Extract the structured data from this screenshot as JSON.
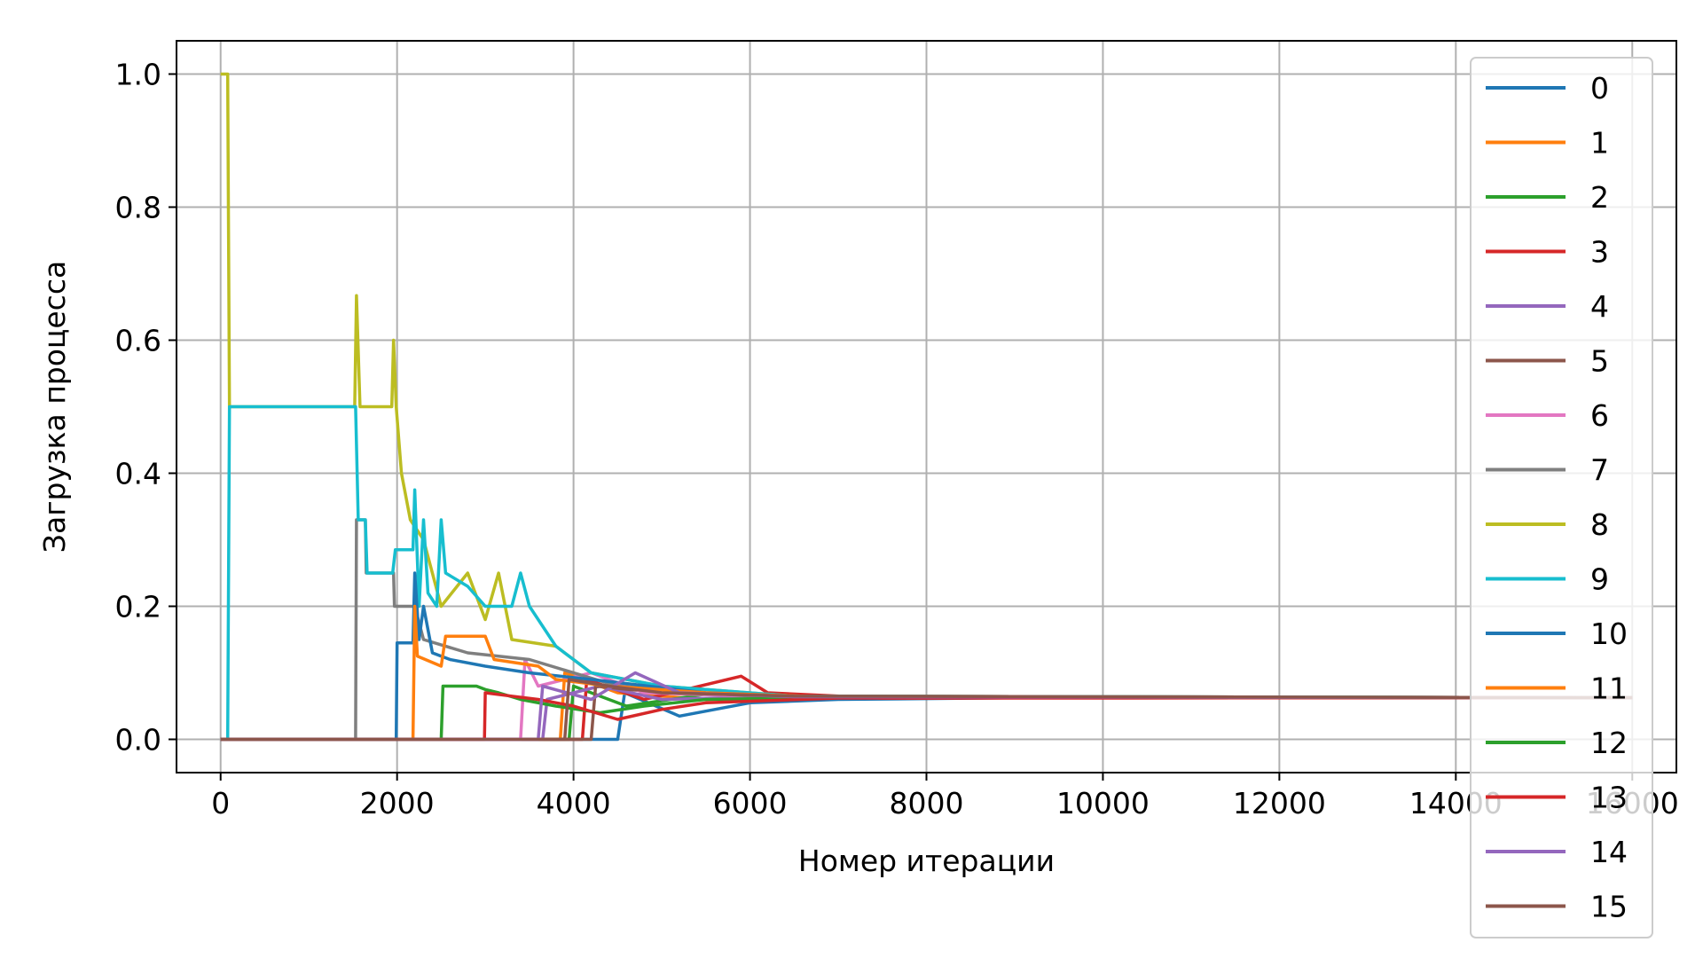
{
  "chart_data": {
    "type": "line",
    "title": "",
    "xlabel": "Номер итерации",
    "ylabel": "Загрузка процесса",
    "xlim": [
      -500,
      16500
    ],
    "ylim": [
      -0.05,
      1.05
    ],
    "x_ticks": [
      0,
      2000,
      4000,
      6000,
      8000,
      10000,
      12000,
      14000,
      16000
    ],
    "x_tick_labels": [
      "0",
      "2000",
      "4000",
      "6000",
      "8000",
      "10000",
      "12000",
      "14000",
      "16000"
    ],
    "y_ticks": [
      0.0,
      0.2,
      0.4,
      0.6,
      0.8,
      1.0
    ],
    "y_tick_labels": [
      "0.0",
      "0.2",
      "0.4",
      "0.6",
      "0.8",
      "1.0"
    ],
    "grid": true,
    "legend_position": "right",
    "series": [
      {
        "name": "0",
        "color": "#1f77b4",
        "points": [
          [
            0,
            0
          ],
          [
            4500,
            0
          ],
          [
            4580,
            0.07
          ],
          [
            5200,
            0.035
          ],
          [
            6000,
            0.055
          ],
          [
            7000,
            0.06
          ],
          [
            9000,
            0.0625
          ],
          [
            16000,
            0.0625
          ]
        ]
      },
      {
        "name": "1",
        "color": "#ff7f0e",
        "points": [
          [
            0,
            0
          ],
          [
            3850,
            0
          ],
          [
            3900,
            0.1
          ],
          [
            4500,
            0.07
          ],
          [
            5500,
            0.06
          ],
          [
            7000,
            0.063
          ],
          [
            16000,
            0.0625
          ]
        ]
      },
      {
        "name": "2",
        "color": "#2ca02c",
        "points": [
          [
            0,
            0
          ],
          [
            3950,
            0
          ],
          [
            4000,
            0.08
          ],
          [
            4600,
            0.05
          ],
          [
            5600,
            0.07
          ],
          [
            7000,
            0.063
          ],
          [
            16000,
            0.0625
          ]
        ]
      },
      {
        "name": "3",
        "color": "#d62728",
        "points": [
          [
            0,
            0
          ],
          [
            4100,
            0
          ],
          [
            4150,
            0.09
          ],
          [
            4800,
            0.06
          ],
          [
            5900,
            0.095
          ],
          [
            6200,
            0.07
          ],
          [
            7500,
            0.062
          ],
          [
            16000,
            0.0625
          ]
        ]
      },
      {
        "name": "4",
        "color": "#9467bd",
        "points": [
          [
            0,
            0
          ],
          [
            3650,
            0
          ],
          [
            3700,
            0.06
          ],
          [
            4300,
            0.08
          ],
          [
            5000,
            0.06
          ],
          [
            6500,
            0.065
          ],
          [
            16000,
            0.0625
          ]
        ]
      },
      {
        "name": "5",
        "color": "#8c564b",
        "points": [
          [
            0,
            0
          ],
          [
            4200,
            0
          ],
          [
            4250,
            0.08
          ],
          [
            5000,
            0.07
          ],
          [
            6500,
            0.065
          ],
          [
            16000,
            0.0625
          ]
        ]
      },
      {
        "name": "6",
        "color": "#e377c2",
        "points": [
          [
            0,
            0
          ],
          [
            3400,
            0
          ],
          [
            3450,
            0.12
          ],
          [
            3600,
            0.08
          ],
          [
            4200,
            0.1
          ],
          [
            4800,
            0.07
          ],
          [
            6000,
            0.065
          ],
          [
            16000,
            0.0625
          ]
        ]
      },
      {
        "name": "7",
        "color": "#7f7f7f",
        "points": [
          [
            0,
            0
          ],
          [
            1530,
            0
          ],
          [
            1540,
            0.33
          ],
          [
            1640,
            0.33
          ],
          [
            1650,
            0.25
          ],
          [
            1960,
            0.25
          ],
          [
            1970,
            0.2
          ],
          [
            2200,
            0.2
          ],
          [
            2300,
            0.15
          ],
          [
            2800,
            0.13
          ],
          [
            3500,
            0.12
          ],
          [
            4500,
            0.08
          ],
          [
            6000,
            0.065
          ],
          [
            16000,
            0.0625
          ]
        ]
      },
      {
        "name": "8",
        "color": "#bcbd22",
        "points": [
          [
            0,
            1.0
          ],
          [
            80,
            1.0
          ],
          [
            100,
            0.5
          ],
          [
            1520,
            0.5
          ],
          [
            1540,
            0.667
          ],
          [
            1580,
            0.5
          ],
          [
            1940,
            0.5
          ],
          [
            1960,
            0.6
          ],
          [
            1990,
            0.5
          ],
          [
            2050,
            0.4
          ],
          [
            2150,
            0.33
          ],
          [
            2300,
            0.3
          ],
          [
            2500,
            0.2
          ],
          [
            2800,
            0.25
          ],
          [
            3000,
            0.18
          ],
          [
            3150,
            0.25
          ],
          [
            3300,
            0.15
          ],
          [
            3800,
            0.14
          ],
          [
            4200,
            0.1
          ],
          [
            5000,
            0.08
          ],
          [
            6500,
            0.065
          ],
          [
            16000,
            0.0625
          ]
        ]
      },
      {
        "name": "9",
        "color": "#17becf",
        "points": [
          [
            0,
            0
          ],
          [
            80,
            0
          ],
          [
            100,
            0.5
          ],
          [
            1530,
            0.5
          ],
          [
            1560,
            0.33
          ],
          [
            1640,
            0.33
          ],
          [
            1660,
            0.25
          ],
          [
            1950,
            0.25
          ],
          [
            1980,
            0.285
          ],
          [
            2180,
            0.285
          ],
          [
            2200,
            0.375
          ],
          [
            2250,
            0.2
          ],
          [
            2300,
            0.33
          ],
          [
            2350,
            0.22
          ],
          [
            2450,
            0.2
          ],
          [
            2500,
            0.33
          ],
          [
            2550,
            0.25
          ],
          [
            2800,
            0.23
          ],
          [
            3000,
            0.2
          ],
          [
            3300,
            0.2
          ],
          [
            3400,
            0.25
          ],
          [
            3500,
            0.2
          ],
          [
            3800,
            0.14
          ],
          [
            4200,
            0.1
          ],
          [
            5000,
            0.08
          ],
          [
            6500,
            0.065
          ],
          [
            16000,
            0.0625
          ]
        ]
      },
      {
        "name": "10",
        "color": "#1f77b4",
        "points": [
          [
            0,
            0
          ],
          [
            1990,
            0
          ],
          [
            2000,
            0.145
          ],
          [
            2180,
            0.145
          ],
          [
            2200,
            0.25
          ],
          [
            2250,
            0.15
          ],
          [
            2300,
            0.2
          ],
          [
            2400,
            0.13
          ],
          [
            2600,
            0.12
          ],
          [
            3000,
            0.11
          ],
          [
            3500,
            0.1
          ],
          [
            4200,
            0.09
          ],
          [
            5500,
            0.07
          ],
          [
            7000,
            0.063
          ],
          [
            16000,
            0.0625
          ]
        ]
      },
      {
        "name": "11",
        "color": "#ff7f0e",
        "points": [
          [
            0,
            0
          ],
          [
            2180,
            0
          ],
          [
            2200,
            0.2
          ],
          [
            2230,
            0.125
          ],
          [
            2500,
            0.11
          ],
          [
            2550,
            0.155
          ],
          [
            3000,
            0.155
          ],
          [
            3100,
            0.12
          ],
          [
            3600,
            0.11
          ],
          [
            3800,
            0.09
          ],
          [
            4400,
            0.08
          ],
          [
            5500,
            0.07
          ],
          [
            7000,
            0.063
          ],
          [
            16000,
            0.0625
          ]
        ]
      },
      {
        "name": "12",
        "color": "#2ca02c",
        "points": [
          [
            0,
            0
          ],
          [
            2500,
            0
          ],
          [
            2520,
            0.08
          ],
          [
            2900,
            0.08
          ],
          [
            3000,
            0.075
          ],
          [
            3150,
            0.07
          ],
          [
            3400,
            0.06
          ],
          [
            3800,
            0.05
          ],
          [
            4300,
            0.04
          ],
          [
            4800,
            0.05
          ],
          [
            5500,
            0.06
          ],
          [
            7000,
            0.063
          ],
          [
            16000,
            0.0625
          ]
        ]
      },
      {
        "name": "13",
        "color": "#d62728",
        "points": [
          [
            0,
            0
          ],
          [
            2990,
            0
          ],
          [
            3000,
            0.07
          ],
          [
            3300,
            0.065
          ],
          [
            3600,
            0.06
          ],
          [
            4000,
            0.05
          ],
          [
            4500,
            0.03
          ],
          [
            5000,
            0.045
          ],
          [
            5500,
            0.055
          ],
          [
            7000,
            0.062
          ],
          [
            16000,
            0.0625
          ]
        ]
      },
      {
        "name": "14",
        "color": "#9467bd",
        "points": [
          [
            0,
            0
          ],
          [
            3600,
            0
          ],
          [
            3650,
            0.08
          ],
          [
            4200,
            0.06
          ],
          [
            4700,
            0.1
          ],
          [
            5200,
            0.07
          ],
          [
            6500,
            0.064
          ],
          [
            16000,
            0.0625
          ]
        ]
      },
      {
        "name": "15",
        "color": "#8c564b",
        "points": [
          [
            0,
            0
          ],
          [
            3900,
            0
          ],
          [
            3950,
            0.09
          ],
          [
            4400,
            0.08
          ],
          [
            5000,
            0.07
          ],
          [
            6500,
            0.065
          ],
          [
            16000,
            0.0625
          ]
        ]
      }
    ]
  }
}
